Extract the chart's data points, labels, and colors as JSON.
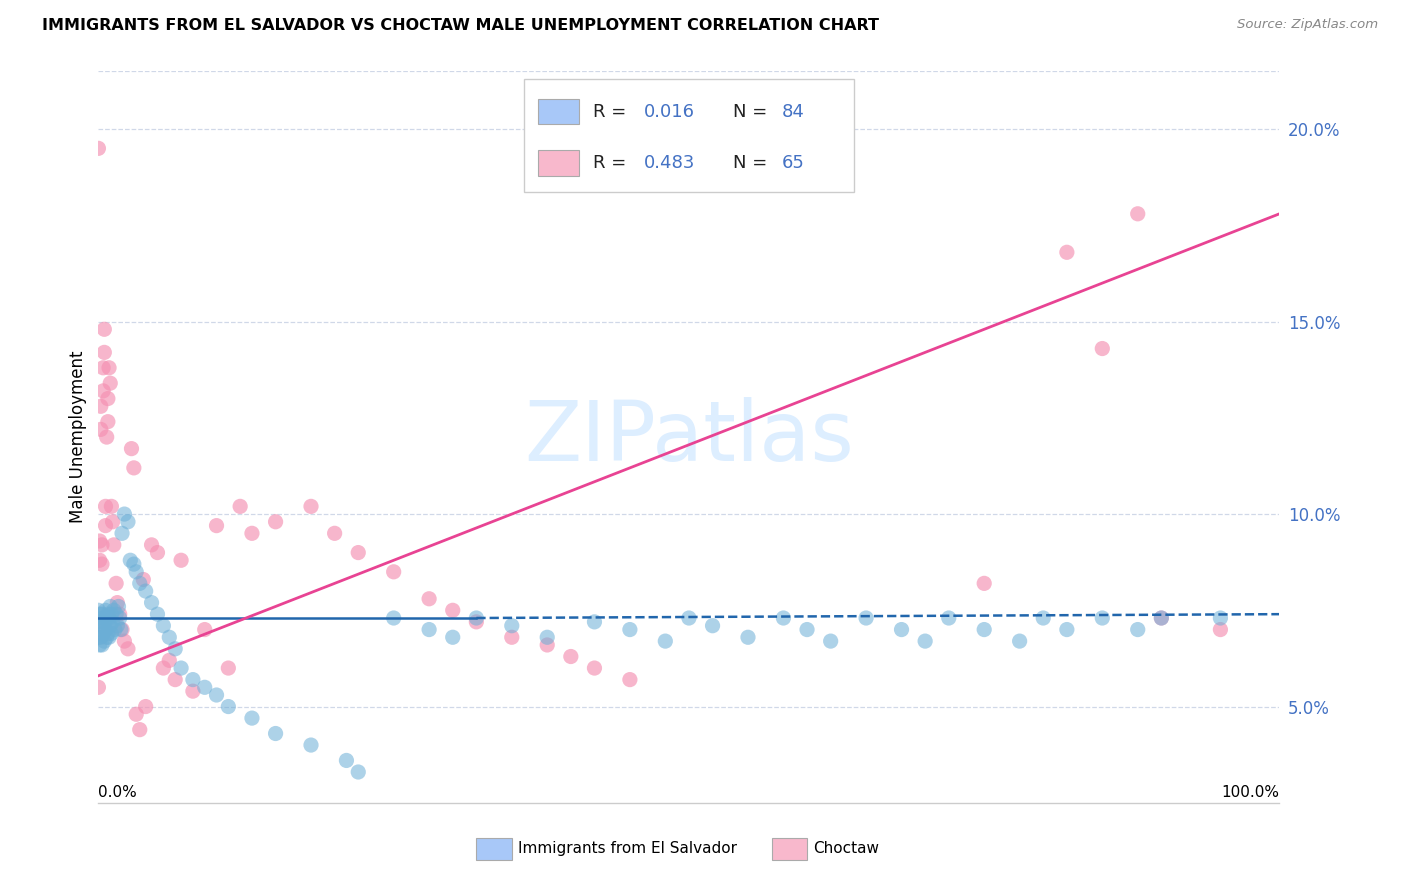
{
  "title": "IMMIGRANTS FROM EL SALVADOR VS CHOCTAW MALE UNEMPLOYMENT CORRELATION CHART",
  "source": "Source: ZipAtlas.com",
  "ylabel": "Male Unemployment",
  "yticks": [
    "5.0%",
    "10.0%",
    "15.0%",
    "20.0%"
  ],
  "ytick_vals": [
    0.05,
    0.1,
    0.15,
    0.2
  ],
  "xlim": [
    0.0,
    1.0
  ],
  "ylim": [
    0.025,
    0.215
  ],
  "blue_color": "#6baed6",
  "pink_color": "#f48fb1",
  "blue_line_color": "#2166ac",
  "pink_line_color": "#e84393",
  "tick_label_color": "#4472c4",
  "watermark_text": "ZIPatlas",
  "watermark_color": "#ddeeff",
  "background_color": "#ffffff",
  "grid_color": "#d0d8e8",
  "legend_blue_color": "#a8c8f8",
  "legend_pink_color": "#f8b8cc",
  "blue_R": "0.016",
  "blue_N": "84",
  "pink_R": "0.483",
  "pink_N": "65",
  "blue_line_x": [
    0.0,
    0.32,
    0.32,
    1.0
  ],
  "blue_line_y": [
    0.073,
    0.073,
    0.073,
    0.074
  ],
  "pink_line_x": [
    0.0,
    1.0
  ],
  "pink_line_y": [
    0.058,
    0.178
  ],
  "blue_scatter_x": [
    0.0,
    0.0,
    0.001,
    0.001,
    0.001,
    0.002,
    0.002,
    0.003,
    0.003,
    0.003,
    0.004,
    0.004,
    0.005,
    0.005,
    0.006,
    0.006,
    0.007,
    0.007,
    0.008,
    0.008,
    0.009,
    0.009,
    0.01,
    0.01,
    0.011,
    0.011,
    0.012,
    0.013,
    0.014,
    0.015,
    0.016,
    0.017,
    0.018,
    0.019,
    0.02,
    0.022,
    0.025,
    0.027,
    0.03,
    0.032,
    0.035,
    0.04,
    0.045,
    0.05,
    0.055,
    0.06,
    0.065,
    0.07,
    0.08,
    0.09,
    0.1,
    0.11,
    0.13,
    0.15,
    0.18,
    0.21,
    0.22,
    0.25,
    0.28,
    0.3,
    0.32,
    0.35,
    0.38,
    0.42,
    0.45,
    0.48,
    0.5,
    0.52,
    0.55,
    0.58,
    0.6,
    0.62,
    0.65,
    0.68,
    0.7,
    0.72,
    0.75,
    0.78,
    0.8,
    0.82,
    0.85,
    0.88,
    0.9,
    0.95
  ],
  "blue_scatter_y": [
    0.075,
    0.068,
    0.074,
    0.07,
    0.066,
    0.072,
    0.068,
    0.074,
    0.071,
    0.066,
    0.073,
    0.069,
    0.072,
    0.067,
    0.075,
    0.07,
    0.073,
    0.068,
    0.074,
    0.069,
    0.073,
    0.068,
    0.076,
    0.071,
    0.074,
    0.069,
    0.072,
    0.075,
    0.07,
    0.074,
    0.071,
    0.076,
    0.073,
    0.07,
    0.095,
    0.1,
    0.098,
    0.088,
    0.087,
    0.085,
    0.082,
    0.08,
    0.077,
    0.074,
    0.071,
    0.068,
    0.065,
    0.06,
    0.057,
    0.055,
    0.053,
    0.05,
    0.047,
    0.043,
    0.04,
    0.036,
    0.033,
    0.073,
    0.07,
    0.068,
    0.073,
    0.071,
    0.068,
    0.072,
    0.07,
    0.067,
    0.073,
    0.071,
    0.068,
    0.073,
    0.07,
    0.067,
    0.073,
    0.07,
    0.067,
    0.073,
    0.07,
    0.067,
    0.073,
    0.07,
    0.073,
    0.07,
    0.073,
    0.073
  ],
  "pink_scatter_x": [
    0.0,
    0.0,
    0.001,
    0.001,
    0.002,
    0.002,
    0.003,
    0.003,
    0.004,
    0.004,
    0.005,
    0.005,
    0.006,
    0.006,
    0.007,
    0.008,
    0.008,
    0.009,
    0.01,
    0.011,
    0.012,
    0.013,
    0.015,
    0.016,
    0.018,
    0.02,
    0.022,
    0.025,
    0.028,
    0.03,
    0.032,
    0.035,
    0.038,
    0.04,
    0.045,
    0.05,
    0.055,
    0.06,
    0.065,
    0.07,
    0.08,
    0.09,
    0.1,
    0.11,
    0.12,
    0.13,
    0.15,
    0.18,
    0.2,
    0.22,
    0.25,
    0.28,
    0.3,
    0.32,
    0.35,
    0.38,
    0.4,
    0.42,
    0.45,
    0.75,
    0.82,
    0.85,
    0.88,
    0.9,
    0.95
  ],
  "pink_scatter_y": [
    0.195,
    0.055,
    0.093,
    0.088,
    0.128,
    0.122,
    0.092,
    0.087,
    0.138,
    0.132,
    0.148,
    0.142,
    0.102,
    0.097,
    0.12,
    0.13,
    0.124,
    0.138,
    0.134,
    0.102,
    0.098,
    0.092,
    0.082,
    0.077,
    0.074,
    0.07,
    0.067,
    0.065,
    0.117,
    0.112,
    0.048,
    0.044,
    0.083,
    0.05,
    0.092,
    0.09,
    0.06,
    0.062,
    0.057,
    0.088,
    0.054,
    0.07,
    0.097,
    0.06,
    0.102,
    0.095,
    0.098,
    0.102,
    0.095,
    0.09,
    0.085,
    0.078,
    0.075,
    0.072,
    0.068,
    0.066,
    0.063,
    0.06,
    0.057,
    0.082,
    0.168,
    0.143,
    0.178,
    0.073,
    0.07
  ]
}
